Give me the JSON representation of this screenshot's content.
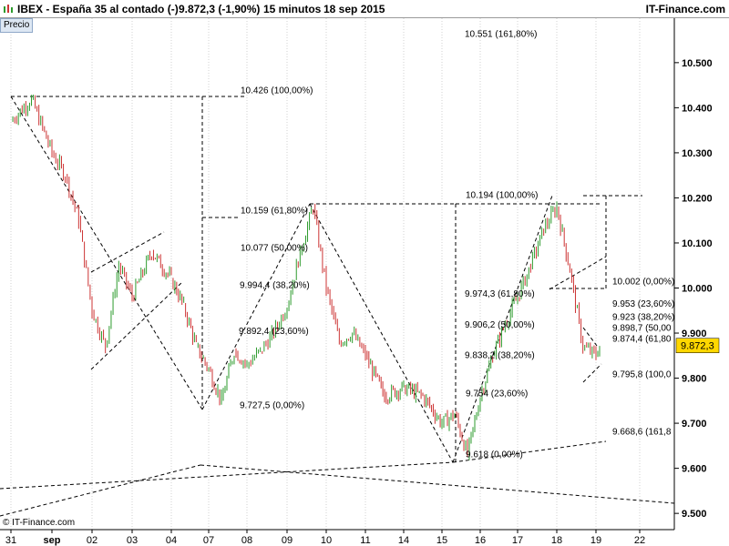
{
  "header": {
    "symbol": "IBEX - España 35 al contado (-)",
    "quote": "9.872,3 (-1,90%)",
    "interval": "15 minutos",
    "date": "18 sep 2015",
    "brand": "IT-Finance.com"
  },
  "panel_label": "Precio",
  "copyright": "© IT-Finance.com",
  "colors": {
    "up_candle": "#2e9b2e",
    "down_candle": "#cc3333",
    "line": "#000000",
    "last_price_bg": "#ffd700"
  },
  "chart_data": {
    "type": "candlestick",
    "title": "IBEX - España 35 al contado (-)",
    "timeframe": "15 minutos",
    "ylim": [
      9450,
      10600
    ],
    "y_ticks": [
      {
        "value": 10500,
        "label": "10.500"
      },
      {
        "value": 10400,
        "label": "10.400"
      },
      {
        "value": 10300,
        "label": "10.300"
      },
      {
        "value": 10200,
        "label": "10.200"
      },
      {
        "value": 10100,
        "label": "10.100"
      },
      {
        "value": 10000,
        "label": "10.000"
      },
      {
        "value": 9900,
        "label": "9.900"
      },
      {
        "value": 9800,
        "label": "9.800"
      },
      {
        "value": 9700,
        "label": "9.700"
      },
      {
        "value": 9600,
        "label": "9.600"
      },
      {
        "value": 9500,
        "label": "9.500"
      }
    ],
    "x_ticks": [
      "31",
      "sep",
      "02",
      "03",
      "04",
      "07",
      "08",
      "09",
      "10",
      "11",
      "14",
      "15",
      "16",
      "17",
      "18",
      "19",
      "22"
    ],
    "last_price": {
      "value": 9872.3,
      "label": "9.872,3"
    },
    "price_path": [
      {
        "x": "31",
        "y": 10370
      },
      {
        "x": "31",
        "y": 10420
      },
      {
        "x": "sep",
        "y": 10300
      },
      {
        "x": "sep",
        "y": 10250
      },
      {
        "x": "sep",
        "y": 10150
      },
      {
        "x": "02",
        "y": 9950
      },
      {
        "x": "02",
        "y": 9870
      },
      {
        "x": "02",
        "y": 10050
      },
      {
        "x": "03",
        "y": 9980
      },
      {
        "x": "03",
        "y": 10080
      },
      {
        "x": "04",
        "y": 10020
      },
      {
        "x": "04",
        "y": 9960
      },
      {
        "x": "04",
        "y": 9870
      },
      {
        "x": "07",
        "y": 9820
      },
      {
        "x": "07",
        "y": 9750
      },
      {
        "x": "07",
        "y": 9860
      },
      {
        "x": "08",
        "y": 9830
      },
      {
        "x": "08",
        "y": 9860
      },
      {
        "x": "08",
        "y": 9900
      },
      {
        "x": "09",
        "y": 9960
      },
      {
        "x": "09",
        "y": 10080
      },
      {
        "x": "09",
        "y": 10180
      },
      {
        "x": "10",
        "y": 10000
      },
      {
        "x": "10",
        "y": 9880
      },
      {
        "x": "10",
        "y": 9900
      },
      {
        "x": "11",
        "y": 9850
      },
      {
        "x": "11",
        "y": 9760
      },
      {
        "x": "14",
        "y": 9780
      },
      {
        "x": "14",
        "y": 9760
      },
      {
        "x": "15",
        "y": 9700
      },
      {
        "x": "15",
        "y": 9720
      },
      {
        "x": "15",
        "y": 9630
      },
      {
        "x": "16",
        "y": 9760
      },
      {
        "x": "16",
        "y": 9850
      },
      {
        "x": "16",
        "y": 9920
      },
      {
        "x": "17",
        "y": 9980
      },
      {
        "x": "17",
        "y": 10050
      },
      {
        "x": "17",
        "y": 10130
      },
      {
        "x": "18",
        "y": 10180
      },
      {
        "x": "18",
        "y": 10040
      },
      {
        "x": "18",
        "y": 9870
      },
      {
        "x": "19",
        "y": 9850
      },
      {
        "x": "19",
        "y": 9872
      }
    ],
    "annotations": [
      {
        "label": "10.551 (161,80%)",
        "value": 10551
      },
      {
        "label": "10.426 (100,00%)",
        "value": 10426
      },
      {
        "label": "10.159 (61,80%)",
        "value": 10159
      },
      {
        "label": "10.077 (50,00%)",
        "value": 10077
      },
      {
        "label": "9.994,4 (38,20%)",
        "value": 9994.4
      },
      {
        "label": "9.892,4 (23,60%)",
        "value": 9892.4
      },
      {
        "label": "9.727,5 (0,00%)",
        "value": 9727.5
      },
      {
        "label": "10.194 (100,00%)",
        "value": 10194
      },
      {
        "label": "9.974,3 (61,80%)",
        "value": 9974.3
      },
      {
        "label": "9.906,2 (50,00%)",
        "value": 9906.2
      },
      {
        "label": "9.838,2 (38,20%)",
        "value": 9838.2
      },
      {
        "label": "9.754 (23,60%)",
        "value": 9754
      },
      {
        "label": "9.618 (0,00%)",
        "value": 9618
      },
      {
        "label": "10.002 (0,00%)",
        "value": 10002
      },
      {
        "label": "9.953 (23,60%)",
        "value": 9953
      },
      {
        "label": "9.923 (38,20%)",
        "value": 9923
      },
      {
        "label": "9.898,7 (50,00",
        "value": 9898.7
      },
      {
        "label": "9.874,4 (61,80",
        "value": 9874.4
      },
      {
        "label": "9.795,8 (100,0",
        "value": 9795.8
      },
      {
        "label": "9.668,6 (161,8",
        "value": 9668.6
      }
    ]
  }
}
